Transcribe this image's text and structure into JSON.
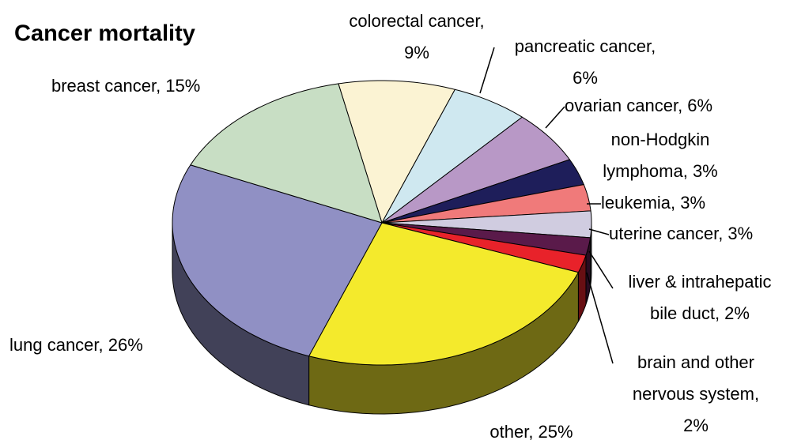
{
  "chart_data": {
    "type": "pie",
    "title": "Cancer mortality",
    "labels": [
      [
        "colorectal cancer,",
        "9%"
      ],
      [
        "pancreatic cancer,",
        "6%"
      ],
      [
        "ovarian cancer, 6%"
      ],
      [
        "non-Hodgkin",
        "lymphoma, 3%"
      ],
      [
        "leukemia, 3%"
      ],
      [
        "uterine cancer, 3%"
      ],
      [
        "liver & intrahepatic",
        "bile duct, 2%"
      ],
      [
        "brain and other",
        "nervous system,",
        "2%"
      ],
      [
        "other, 25%"
      ],
      [
        "lung cancer, 26%"
      ],
      [
        "breast cancer, 15%"
      ]
    ],
    "values": [
      9,
      6,
      6,
      3,
      3,
      3,
      2,
      2,
      25,
      26,
      15
    ],
    "colors": [
      "#fbf3d3",
      "#cfe8f0",
      "#b898c6",
      "#1e1e5a",
      "#f07a7a",
      "#d0cce0",
      "#5a1a4a",
      "#e8222a",
      "#f4ea2c",
      "#9090c4",
      "#c8dec4"
    ]
  }
}
